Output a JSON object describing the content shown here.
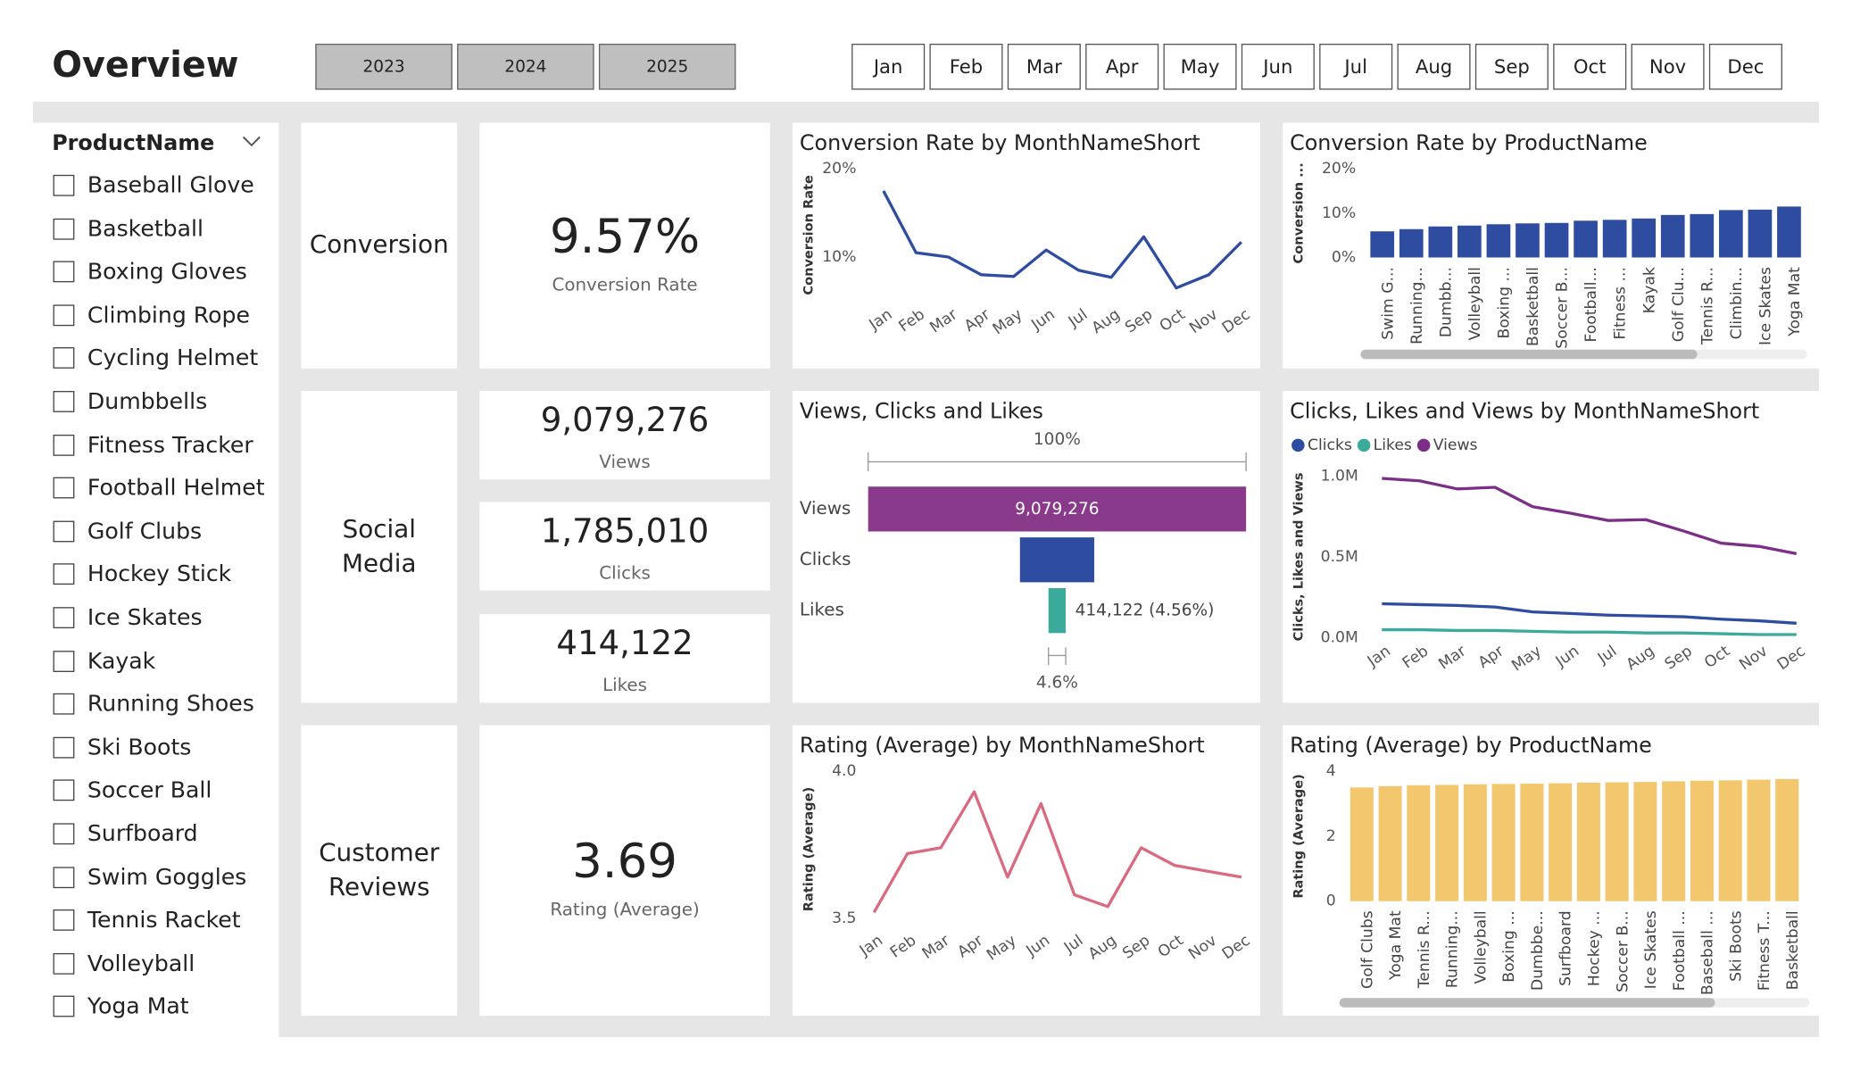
{
  "header": {
    "title": "Overview",
    "years": [
      "2023",
      "2024",
      "2025"
    ],
    "months": [
      "Jan",
      "Feb",
      "Mar",
      "Apr",
      "May",
      "Jun",
      "Jul",
      "Aug",
      "Sep",
      "Oct",
      "Nov",
      "Dec"
    ]
  },
  "slicer": {
    "title": "ProductName",
    "items": [
      "Baseball Glove",
      "Basketball",
      "Boxing Gloves",
      "Climbing Rope",
      "Cycling Helmet",
      "Dumbbells",
      "Fitness Tracker",
      "Football Helmet",
      "Golf Clubs",
      "Hockey Stick",
      "Ice Skates",
      "Kayak",
      "Running Shoes",
      "Ski Boots",
      "Soccer Ball",
      "Surfboard",
      "Swim Goggles",
      "Tennis Racket",
      "Volleyball",
      "Yoga Mat"
    ]
  },
  "cards": [
    {
      "label": "Conversion",
      "kpis": [
        {
          "value": "9.57%",
          "label": "Conversion Rate"
        }
      ]
    },
    {
      "label": "Social Media",
      "kpis": [
        {
          "value": "9,079,276",
          "label": "Views"
        },
        {
          "value": "1,785,010",
          "label": "Clicks"
        },
        {
          "value": "414,122",
          "label": "Likes"
        }
      ]
    },
    {
      "label": "Customer Reviews",
      "kpis": [
        {
          "value": "3.69",
          "label": "Rating (Average)"
        }
      ]
    }
  ],
  "chart_data": [
    {
      "type": "line",
      "title": "Conversion Rate by MonthNameShort",
      "y_label": "Conversion Rate",
      "color": "#2f4da0",
      "categories": [
        "Jan",
        "Feb",
        "Mar",
        "Apr",
        "May",
        "Jun",
        "Jul",
        "Aug",
        "Sep",
        "Oct",
        "Nov",
        "Dec"
      ],
      "values": [
        17.5,
        10.5,
        10,
        8,
        7.8,
        10.8,
        8.5,
        7.7,
        12.3,
        6.5,
        8,
        11.7
      ],
      "ylim": [
        5,
        20
      ],
      "yticks": [
        {
          "value": 10,
          "label": "10%"
        },
        {
          "value": 20,
          "label": "20%"
        }
      ],
      "grid": false
    },
    {
      "type": "bar",
      "title": "Conversion Rate by ProductName",
      "y_label": "Conversion ...",
      "color": "#2f4da0",
      "categories": [
        "Swim G...",
        "Running...",
        "Dumbb...",
        "Volleyball",
        "Boxing ...",
        "Basketball",
        "Soccer B...",
        "Football...",
        "Fitness ...",
        "Kayak",
        "Golf Clu...",
        "Tennis R...",
        "Climbin...",
        "Ice Skates",
        "Yoga Mat"
      ],
      "values": [
        5.9,
        6.4,
        7,
        7.2,
        7.5,
        7.7,
        7.8,
        8.3,
        8.5,
        8.8,
        9.6,
        9.8,
        10.7,
        10.8,
        11.5
      ],
      "ylim": [
        0,
        20
      ],
      "yticks": [
        {
          "value": 0,
          "label": "0%"
        },
        {
          "value": 10,
          "label": "10%"
        },
        {
          "value": 20,
          "label": "20%"
        }
      ],
      "grid": false
    },
    {
      "type": "funnel",
      "title": "Views, Clicks and Likes",
      "categories": [
        "Views",
        "Clicks",
        "Likes"
      ],
      "values": [
        9079276,
        1785010,
        414122
      ],
      "value_labels": [
        "9,079,276",
        null,
        "414,122 (4.56%)"
      ],
      "colors": [
        "#893a8b",
        "#2f4da0",
        "#3aab9a"
      ],
      "annotations": [
        "100%",
        "4.6%"
      ]
    },
    {
      "type": "line",
      "title": "Clicks, Likes and Views by MonthNameShort",
      "y_label": "Clicks, Likes and Views",
      "legend": "top-left",
      "categories": [
        "Jan",
        "Feb",
        "Mar",
        "Apr",
        "May",
        "Jun",
        "Jul",
        "Aug",
        "Sep",
        "Oct",
        "Nov",
        "Dec"
      ],
      "series": [
        {
          "name": "Clicks",
          "color": "#2f4da0",
          "values": [
            210000,
            205000,
            200000,
            190000,
            160000,
            150000,
            140000,
            135000,
            130000,
            115000,
            105000,
            90000
          ]
        },
        {
          "name": "Likes",
          "color": "#3aab9a",
          "values": [
            50000,
            50000,
            45000,
            45000,
            40000,
            35000,
            35000,
            30000,
            30000,
            25000,
            20000,
            20000
          ]
        },
        {
          "name": "Views",
          "color": "#7b2f87",
          "values": [
            985000,
            970000,
            920000,
            930000,
            810000,
            770000,
            725000,
            730000,
            660000,
            585000,
            565000,
            520000
          ]
        }
      ],
      "ylim": [
        0,
        1000000
      ],
      "yticks": [
        {
          "value": 0,
          "label": "0.0M"
        },
        {
          "value": 500000,
          "label": "0.5M"
        },
        {
          "value": 1000000,
          "label": "1.0M"
        }
      ],
      "grid": false
    },
    {
      "type": "line",
      "title": "Rating (Average) by MonthNameShort",
      "y_label": "Rating (Average)",
      "color": "#d96a80",
      "categories": [
        "Jan",
        "Feb",
        "Mar",
        "Apr",
        "May",
        "Jun",
        "Jul",
        "Aug",
        "Sep",
        "Oct",
        "Nov",
        "Dec"
      ],
      "values": [
        3.52,
        3.72,
        3.74,
        3.93,
        3.64,
        3.89,
        3.58,
        3.54,
        3.74,
        3.68,
        3.66,
        3.64
      ],
      "ylim": [
        3.47,
        4.0
      ],
      "yticks": [
        3.5,
        {
          "value": 4,
          "label": "4.0"
        }
      ],
      "grid": false
    },
    {
      "type": "bar",
      "title": "Rating (Average) by ProductName",
      "y_label": "Rating (Average)",
      "color": "#f2c76e",
      "categories": [
        "Golf Clubs",
        "Yoga Mat",
        "Tennis R...",
        "Running...",
        "Volleyball",
        "Boxing ...",
        "Dumbbe...",
        "Surfboard",
        "Hockey ...",
        "Soccer B...",
        "Ice Skates",
        "Football ...",
        "Baseball ...",
        "Ski Boots",
        "Fitness T...",
        "Basketball"
      ],
      "values": [
        3.5,
        3.54,
        3.57,
        3.58,
        3.6,
        3.61,
        3.62,
        3.63,
        3.65,
        3.66,
        3.67,
        3.69,
        3.71,
        3.72,
        3.74,
        3.76
      ],
      "ylim": [
        0,
        4
      ],
      "yticks": [
        0,
        2,
        4
      ],
      "grid": false
    }
  ]
}
